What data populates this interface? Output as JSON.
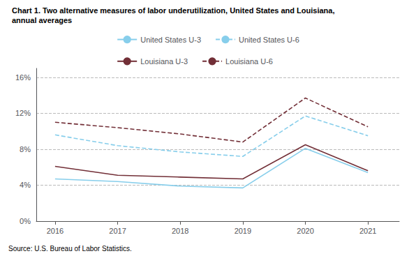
{
  "chart_data": {
    "type": "line",
    "title": "Chart 1. Two alternative measures of labor underutilization, United States and Louisiana,",
    "subtitle": "annual averages",
    "annotations": [
      "Source: U.S. Bureau of Labor Statistics."
    ],
    "x": [
      2016,
      2017,
      2018,
      2019,
      2020,
      2021
    ],
    "xlim": [
      2015.7,
      2021.5
    ],
    "xticks": [
      2016,
      2017,
      2018,
      2019,
      2020,
      2021
    ],
    "ylim": [
      0,
      17
    ],
    "yticks": [
      {
        "value": 0,
        "label": "0%"
      },
      {
        "value": 4,
        "label": "4%"
      },
      {
        "value": 8,
        "label": "8%"
      },
      {
        "value": 12,
        "label": "12%"
      },
      {
        "value": 16,
        "label": "16%"
      }
    ],
    "grid": true,
    "legend": "top",
    "series": [
      {
        "name": "United States U-3",
        "color": "#87CEEB",
        "line_style": "solid",
        "values": [
          4.7,
          4.4,
          3.9,
          3.7,
          8.1,
          5.4
        ]
      },
      {
        "name": "United States U-6",
        "color": "#87CEEB",
        "line_style": "dashed",
        "values": [
          9.6,
          8.4,
          7.7,
          7.2,
          11.7,
          9.5
        ]
      },
      {
        "name": "Louisiana U-3",
        "color": "#722F37",
        "line_style": "solid",
        "values": [
          6.1,
          5.1,
          4.9,
          4.7,
          8.5,
          5.6
        ]
      },
      {
        "name": "Louisiana U-6",
        "color": "#722F37",
        "line_style": "dashed",
        "values": [
          11.0,
          10.4,
          9.7,
          8.8,
          13.7,
          10.5
        ]
      }
    ]
  }
}
